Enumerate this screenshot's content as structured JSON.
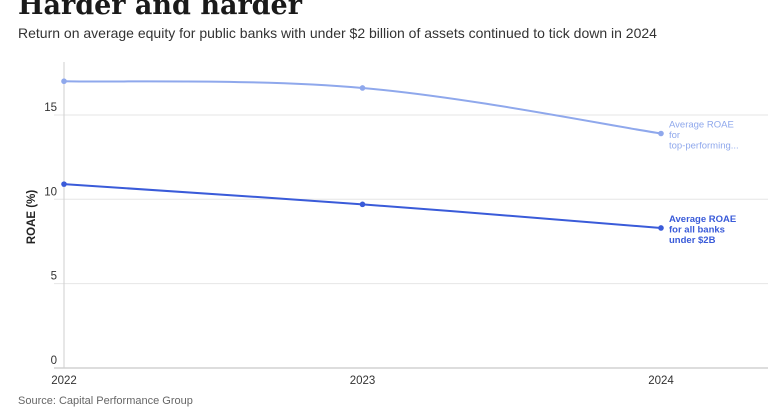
{
  "header": {
    "title": "Harder and harder",
    "subtitle": "Return on average equity for public banks with under $2 billion of assets continued to tick down in 2024"
  },
  "source": "Source: Capital Performance Group",
  "chart_data": {
    "type": "line",
    "x": [
      "2022",
      "2023",
      "2024"
    ],
    "ylabel": "ROAE (%)",
    "xlabel": "",
    "ylim": [
      0,
      18
    ],
    "yticks": [
      "0",
      "5",
      "10",
      "15"
    ],
    "grid": "horizontal",
    "series": [
      {
        "name": "Average ROAE for top-performing...",
        "label_lines": [
          "Average ROAE",
          "for",
          "top-performing..."
        ],
        "values": [
          17.0,
          16.6,
          13.9
        ],
        "color": "#8fa8ec",
        "label_bold": false
      },
      {
        "name": "Average ROAE for all banks under $2B",
        "label_lines": [
          "Average ROAE",
          "for all banks",
          "under $2B"
        ],
        "values": [
          10.9,
          9.7,
          8.3
        ],
        "color": "#3a5bd9",
        "label_bold": true
      }
    ]
  }
}
